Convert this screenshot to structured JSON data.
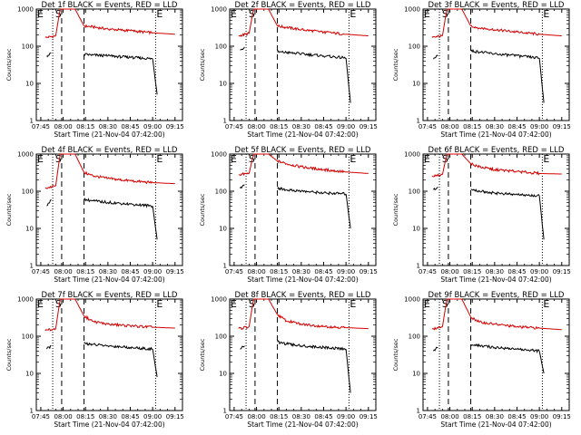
{
  "figure": {
    "start_label": "Start Time (21-Nov-04 07:42:00)",
    "ylabel": "Counts/sec",
    "x_ticks": [
      "07:45",
      "08:00",
      "08:15",
      "08:30",
      "08:45",
      "09:00",
      "09:15"
    ],
    "y_ticks": [
      "1",
      "10",
      "100",
      "1000"
    ],
    "markers": {
      "E_left": "E",
      "S": "S",
      "E_right": "E"
    },
    "colors": {
      "events": "#000000",
      "lld": "#d40000"
    }
  },
  "chart_data": [
    {
      "type": "line",
      "title": "Det 1f BLACK = Events, RED = LLD",
      "xlabel": "Start Time (21-Nov-04 07:42:00)",
      "ylabel": "Counts/sec",
      "xlim": [
        "07:42",
        "09:20"
      ],
      "ylim": [
        1,
        1000
      ],
      "yscale": "log",
      "x_ticks": [
        "07:45",
        "08:00",
        "08:15",
        "08:30",
        "08:45",
        "09:00",
        "09:15"
      ],
      "marker_lines": {
        "E_start": "07:53",
        "S": "07:59",
        "E_end": "09:02"
      },
      "series": [
        {
          "name": "LLD",
          "color": "red",
          "x": [
            "07:48",
            "07:55",
            "07:58",
            "08:08",
            "08:14",
            "08:20",
            "08:30",
            "08:45",
            "09:00",
            "09:15"
          ],
          "y": [
            170,
            190,
            1000,
            1000,
            350,
            330,
            290,
            260,
            230,
            210
          ]
        },
        {
          "name": "Events",
          "color": "black",
          "x": [
            "07:49",
            "07:52",
            "08:14",
            "08:20",
            "08:30",
            "08:45",
            "09:00",
            "09:03"
          ],
          "y": [
            55,
            65,
            60,
            58,
            55,
            50,
            46,
            5
          ]
        }
      ]
    },
    {
      "type": "line",
      "title": "Det 2f BLACK = Events, RED = LLD",
      "xlabel": "Start Time (21-Nov-04 07:42:00)",
      "ylabel": "Counts/sec",
      "xlim": [
        "07:42",
        "09:20"
      ],
      "ylim": [
        1,
        1000
      ],
      "yscale": "log",
      "x_ticks": [
        "07:45",
        "08:00",
        "08:15",
        "08:30",
        "08:45",
        "09:00",
        "09:15"
      ],
      "marker_lines": {
        "E_start": "07:53",
        "S": "07:59",
        "E_end": "09:02"
      },
      "series": [
        {
          "name": "LLD",
          "color": "red",
          "x": [
            "07:48",
            "07:55",
            "07:58",
            "08:08",
            "08:14",
            "08:20",
            "08:30",
            "08:45",
            "09:00",
            "09:15"
          ],
          "y": [
            190,
            220,
            1000,
            1000,
            350,
            320,
            280,
            240,
            210,
            190
          ]
        },
        {
          "name": "Events",
          "color": "black",
          "x": [
            "07:49",
            "07:52",
            "08:14",
            "08:20",
            "08:30",
            "08:45",
            "09:00",
            "09:03"
          ],
          "y": [
            80,
            95,
            70,
            68,
            62,
            55,
            48,
            3
          ]
        }
      ]
    },
    {
      "type": "line",
      "title": "Det 3f BLACK = Events, RED = LLD",
      "xlabel": "Start Time (21-Nov-04 07:42:00)",
      "ylabel": "Counts/sec",
      "xlim": [
        "07:42",
        "09:20"
      ],
      "ylim": [
        1,
        1000
      ],
      "yscale": "log",
      "x_ticks": [
        "07:45",
        "08:00",
        "08:15",
        "08:30",
        "08:45",
        "09:00",
        "09:15"
      ],
      "marker_lines": {
        "E_start": "07:53",
        "S": "07:59",
        "E_end": "09:02"
      },
      "series": [
        {
          "name": "LLD",
          "color": "red",
          "x": [
            "07:48",
            "07:55",
            "07:58",
            "08:08",
            "08:14",
            "08:20",
            "08:30",
            "08:45",
            "09:00",
            "09:15"
          ],
          "y": [
            170,
            190,
            1000,
            1000,
            350,
            310,
            280,
            240,
            210,
            190
          ]
        },
        {
          "name": "Events",
          "color": "black",
          "x": [
            "07:49",
            "07:52",
            "08:14",
            "08:20",
            "08:30",
            "08:45",
            "09:00",
            "09:03"
          ],
          "y": [
            45,
            55,
            75,
            70,
            62,
            55,
            48,
            3
          ]
        }
      ]
    },
    {
      "type": "line",
      "title": "Det 4f BLACK = Events, RED = LLD",
      "xlabel": "Start Time (21-Nov-04 07:42:00)",
      "ylabel": "Counts/sec",
      "xlim": [
        "07:42",
        "09:20"
      ],
      "ylim": [
        1,
        1000
      ],
      "yscale": "log",
      "x_ticks": [
        "07:45",
        "08:00",
        "08:15",
        "08:30",
        "08:45",
        "09:00",
        "09:15"
      ],
      "marker_lines": {
        "E_start": "07:53",
        "S": "07:59",
        "E_end": "09:02"
      },
      "series": [
        {
          "name": "LLD",
          "color": "red",
          "x": [
            "07:48",
            "07:55",
            "07:58",
            "08:08",
            "08:14",
            "08:20",
            "08:30",
            "08:45",
            "09:00",
            "09:15"
          ],
          "y": [
            120,
            140,
            1000,
            1000,
            320,
            260,
            220,
            190,
            170,
            160
          ]
        },
        {
          "name": "Events",
          "color": "black",
          "x": [
            "07:49",
            "07:52",
            "08:14",
            "08:20",
            "08:30",
            "08:45",
            "09:00",
            "09:03"
          ],
          "y": [
            40,
            60,
            60,
            55,
            50,
            45,
            40,
            5
          ]
        }
      ]
    },
    {
      "type": "line",
      "title": "Det 5f BLACK = Events, RED = LLD",
      "xlabel": "Start Time (21-Nov-04 07:42:00)",
      "ylabel": "Counts/sec",
      "xlim": [
        "07:42",
        "09:20"
      ],
      "ylim": [
        1,
        1000
      ],
      "yscale": "log",
      "x_ticks": [
        "07:45",
        "08:00",
        "08:15",
        "08:30",
        "08:45",
        "09:00",
        "09:15"
      ],
      "marker_lines": {
        "E_start": "07:53",
        "S": "07:59",
        "E_end": "09:02"
      },
      "series": [
        {
          "name": "LLD",
          "color": "red",
          "x": [
            "07:48",
            "07:55",
            "07:58",
            "08:08",
            "08:14",
            "08:20",
            "08:30",
            "08:45",
            "09:00",
            "09:15"
          ],
          "y": [
            280,
            300,
            1000,
            1000,
            650,
            550,
            450,
            380,
            330,
            300
          ]
        },
        {
          "name": "Events",
          "color": "black",
          "x": [
            "07:49",
            "07:52",
            "08:14",
            "08:20",
            "08:30",
            "08:45",
            "09:00",
            "09:03"
          ],
          "y": [
            120,
            150,
            120,
            110,
            100,
            90,
            85,
            10
          ]
        }
      ]
    },
    {
      "type": "line",
      "title": "Det 6f BLACK = Events, RED = LLD",
      "xlabel": "Start Time (21-Nov-04 07:42:00)",
      "ylabel": "Counts/sec",
      "xlim": [
        "07:42",
        "09:20"
      ],
      "ylim": [
        1,
        1000
      ],
      "yscale": "log",
      "x_ticks": [
        "07:45",
        "08:00",
        "08:15",
        "08:30",
        "08:45",
        "09:00",
        "09:15"
      ],
      "marker_lines": {
        "E_start": "07:53",
        "S": "07:59",
        "E_end": "09:02"
      },
      "series": [
        {
          "name": "LLD",
          "color": "red",
          "x": [
            "07:48",
            "07:55",
            "07:58",
            "08:08",
            "08:14",
            "08:20",
            "08:30",
            "08:45",
            "09:00",
            "09:15"
          ],
          "y": [
            260,
            280,
            1000,
            1000,
            550,
            450,
            380,
            340,
            300,
            290
          ]
        },
        {
          "name": "Events",
          "color": "black",
          "x": [
            "07:49",
            "07:52",
            "08:14",
            "08:20",
            "08:30",
            "08:45",
            "09:00",
            "09:03"
          ],
          "y": [
            110,
            130,
            110,
            100,
            90,
            80,
            75,
            5
          ]
        }
      ]
    },
    {
      "type": "line",
      "title": "Det 7f BLACK = Events, RED = LLD",
      "xlabel": "Start Time (21-Nov-04 07:42:00)",
      "ylabel": "Counts/sec",
      "xlim": [
        "07:42",
        "09:20"
      ],
      "ylim": [
        1,
        1000
      ],
      "yscale": "log",
      "x_ticks": [
        "07:45",
        "08:00",
        "08:15",
        "08:30",
        "08:45",
        "09:00",
        "09:15"
      ],
      "marker_lines": {
        "E_start": "07:53",
        "S": "07:59",
        "E_end": "09:02"
      },
      "series": [
        {
          "name": "LLD",
          "color": "red",
          "x": [
            "07:48",
            "07:55",
            "07:58",
            "08:08",
            "08:14",
            "08:20",
            "08:30",
            "08:45",
            "09:00",
            "09:15"
          ],
          "y": [
            140,
            160,
            1000,
            1000,
            350,
            250,
            210,
            190,
            175,
            165
          ]
        },
        {
          "name": "Events",
          "color": "black",
          "x": [
            "07:49",
            "07:52",
            "08:14",
            "08:20",
            "08:30",
            "08:45",
            "09:00",
            "09:03"
          ],
          "y": [
            45,
            55,
            65,
            60,
            55,
            50,
            45,
            8
          ]
        }
      ]
    },
    {
      "type": "line",
      "title": "Det 8f BLACK = Events, RED = LLD",
      "xlabel": "Start Time (21-Nov-04 07:42:00)",
      "ylabel": "Counts/sec",
      "xlim": [
        "07:42",
        "09:20"
      ],
      "ylim": [
        1,
        1000
      ],
      "yscale": "log",
      "x_ticks": [
        "07:45",
        "08:00",
        "08:15",
        "08:30",
        "08:45",
        "09:00",
        "09:15"
      ],
      "marker_lines": {
        "E_start": "07:53",
        "S": "07:59",
        "E_end": "09:02"
      },
      "series": [
        {
          "name": "LLD",
          "color": "red",
          "x": [
            "07:48",
            "07:55",
            "07:58",
            "08:08",
            "08:14",
            "08:20",
            "08:30",
            "08:45",
            "09:00",
            "09:15"
          ],
          "y": [
            160,
            180,
            1000,
            1000,
            380,
            260,
            210,
            185,
            170,
            160
          ]
        },
        {
          "name": "Events",
          "color": "black",
          "x": [
            "07:49",
            "07:52",
            "08:14",
            "08:20",
            "08:30",
            "08:45",
            "09:00",
            "09:03"
          ],
          "y": [
            45,
            55,
            70,
            62,
            55,
            50,
            45,
            3
          ]
        }
      ]
    },
    {
      "type": "line",
      "title": "Det 9f BLACK = Events, RED = LLD",
      "xlabel": "Start Time (21-Nov-04 07:42:00)",
      "ylabel": "Counts/sec",
      "xlim": [
        "07:42",
        "09:20"
      ],
      "ylim": [
        1,
        1000
      ],
      "yscale": "log",
      "x_ticks": [
        "07:45",
        "08:00",
        "08:15",
        "08:30",
        "08:45",
        "09:00",
        "09:15"
      ],
      "marker_lines": {
        "E_start": "07:53",
        "S": "07:59",
        "E_end": "09:02"
      },
      "series": [
        {
          "name": "LLD",
          "color": "red",
          "x": [
            "07:48",
            "07:55",
            "07:58",
            "08:08",
            "08:14",
            "08:20",
            "08:30",
            "08:45",
            "09:00",
            "09:15"
          ],
          "y": [
            160,
            180,
            1000,
            1000,
            330,
            240,
            210,
            180,
            165,
            150
          ]
        },
        {
          "name": "Events",
          "color": "black",
          "x": [
            "07:49",
            "07:52",
            "08:14",
            "08:20",
            "08:30",
            "08:45",
            "09:00",
            "09:03"
          ],
          "y": [
            40,
            50,
            60,
            55,
            50,
            45,
            40,
            10
          ]
        }
      ]
    }
  ]
}
